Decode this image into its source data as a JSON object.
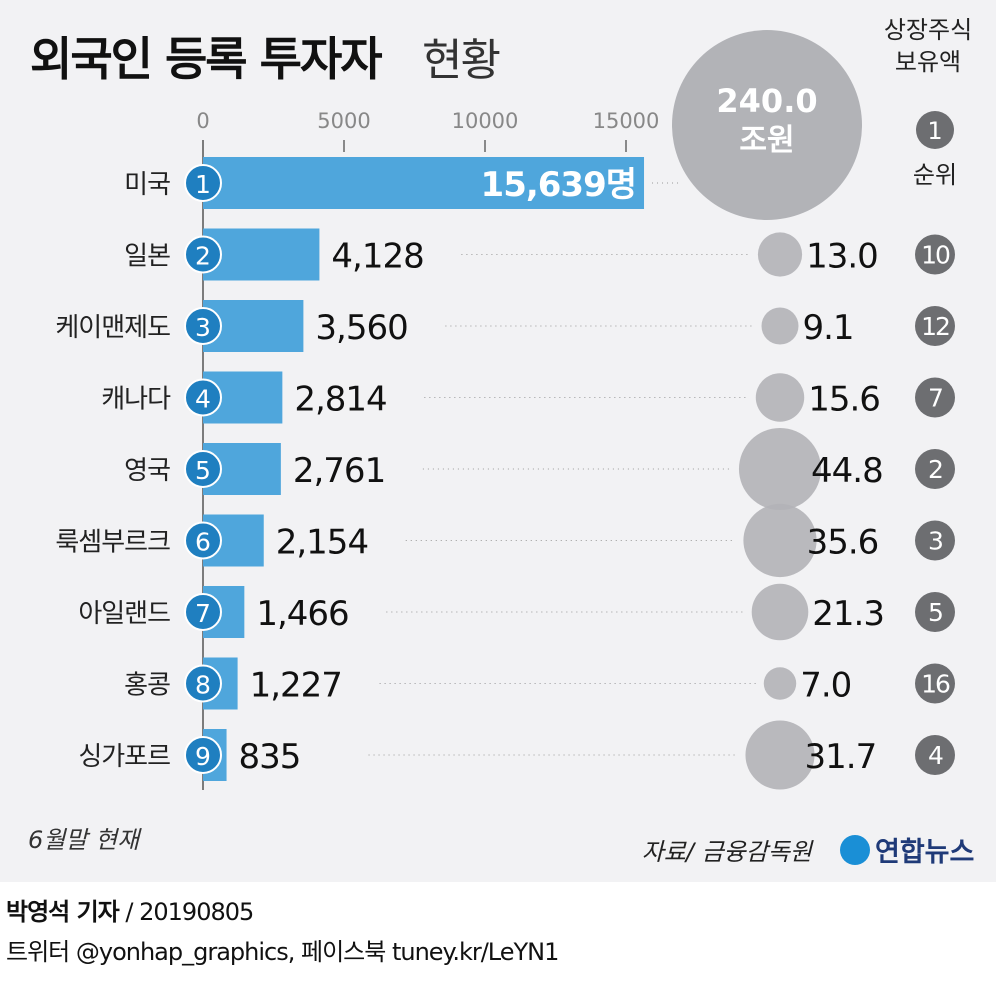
{
  "chart_data": {
    "type": "bar",
    "title": "외국인 등록 투자자",
    "title_suffix": "현황",
    "xticks": [
      0,
      5000,
      10000,
      15000
    ],
    "xlim": [
      0,
      16000
    ],
    "unit_suffix": "명",
    "categories": [
      "미국",
      "일본",
      "케이맨제도",
      "캐나다",
      "영국",
      "룩셈부르크",
      "아일랜드",
      "홍콩",
      "싱가포르"
    ],
    "values": [
      15639,
      4128,
      3560,
      2814,
      2761,
      2154,
      1466,
      1227,
      835
    ],
    "value_labels": [
      "15,639",
      "4,128",
      "3,560",
      "2,814",
      "2,761",
      "2,154",
      "1,466",
      "1,227",
      "835"
    ],
    "holdings": [
      240.0,
      13.0,
      9.1,
      15.6,
      44.8,
      35.6,
      21.3,
      7.0,
      31.7
    ],
    "holdings_labels": [
      "240.0",
      "13.0",
      "9.1",
      "15.6",
      "44.8",
      "35.6",
      "21.3",
      "7.0",
      "31.7"
    ],
    "holdings_unit": "조원",
    "holdings_rank": [
      1,
      10,
      12,
      7,
      2,
      3,
      5,
      16,
      4
    ],
    "legend_holdings": [
      "상장주식",
      "보유액"
    ],
    "legend_rank": "순위",
    "note": "6월말 현재",
    "source": "자료/ 금융감독원",
    "colors": {
      "bar": "#4fa6dc",
      "badge": "#1f7fc0",
      "bubble": "#b2b3b7",
      "rank": "#6d6e71",
      "bg": "#f2f2f4"
    }
  },
  "logo": "연합뉴스",
  "credit": {
    "author": "박영석 기자",
    "date": "/  20190805",
    "social": "트위터 @yonhap_graphics, 페이스북 tuney.kr/LeYN1"
  }
}
